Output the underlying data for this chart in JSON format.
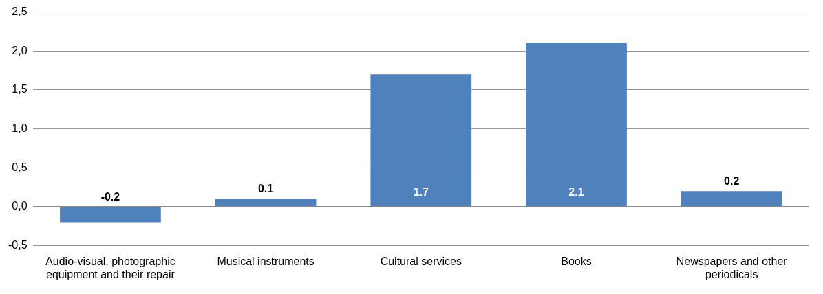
{
  "chart_data": {
    "type": "bar",
    "categories": [
      "Audio-visual, photographic equipment and their repair",
      "Musical instruments",
      "Cultural services",
      "Books",
      "Newspapers and other periodicals"
    ],
    "values": [
      -0.2,
      0.1,
      1.7,
      2.1,
      0.2
    ],
    "color": "#4f81bd",
    "data_labels": true,
    "grid": "y",
    "ylim": [
      -0.5,
      2.5
    ],
    "yticks": [
      {
        "value": -0.5,
        "label": "-0,5"
      },
      {
        "value": 0,
        "label": "0,0"
      },
      {
        "value": 0.5,
        "label": "0,5"
      },
      {
        "value": 1,
        "label": "1,0"
      },
      {
        "value": 1.5,
        "label": "1,5"
      },
      {
        "value": 2,
        "label": "2,0"
      },
      {
        "value": 2.5,
        "label": "2,5"
      }
    ]
  }
}
